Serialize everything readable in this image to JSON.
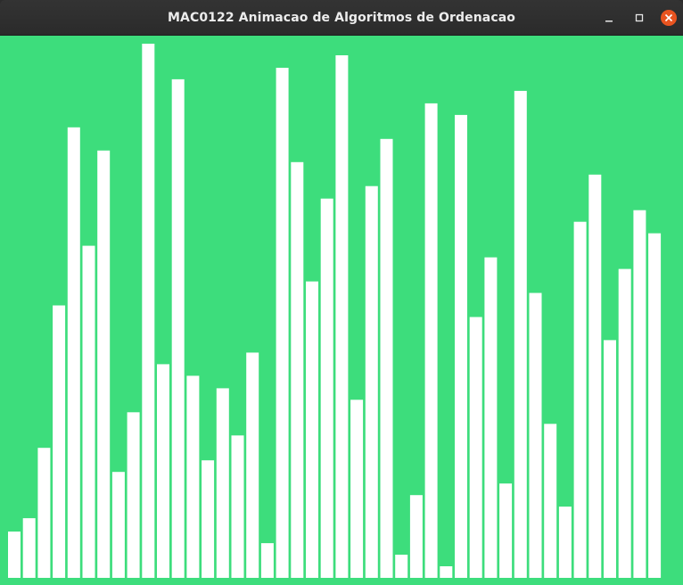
{
  "window": {
    "title": "MAC0122 Animacao de Algoritmos de Ordenacao",
    "controls": {
      "minimize_icon": "minimize-icon",
      "maximize_icon": "maximize-icon",
      "close_icon": "close-icon"
    }
  },
  "colors": {
    "background": "#3ddd7c",
    "bar": "#ffffff",
    "titlebar": "#2c2c2c",
    "close_button": "#e95420"
  },
  "chart_data": {
    "type": "bar",
    "ylim": [
      0,
      600
    ],
    "values": [
      52,
      67,
      146,
      306,
      506,
      373,
      480,
      119,
      186,
      600,
      240,
      560,
      227,
      132,
      213,
      160,
      253,
      39,
      573,
      467,
      333,
      426,
      587,
      200,
      440,
      493,
      26,
      93,
      533,
      13,
      520,
      293,
      360,
      106,
      547,
      320,
      173,
      80,
      400,
      453,
      267,
      347,
      413,
      387
    ]
  }
}
